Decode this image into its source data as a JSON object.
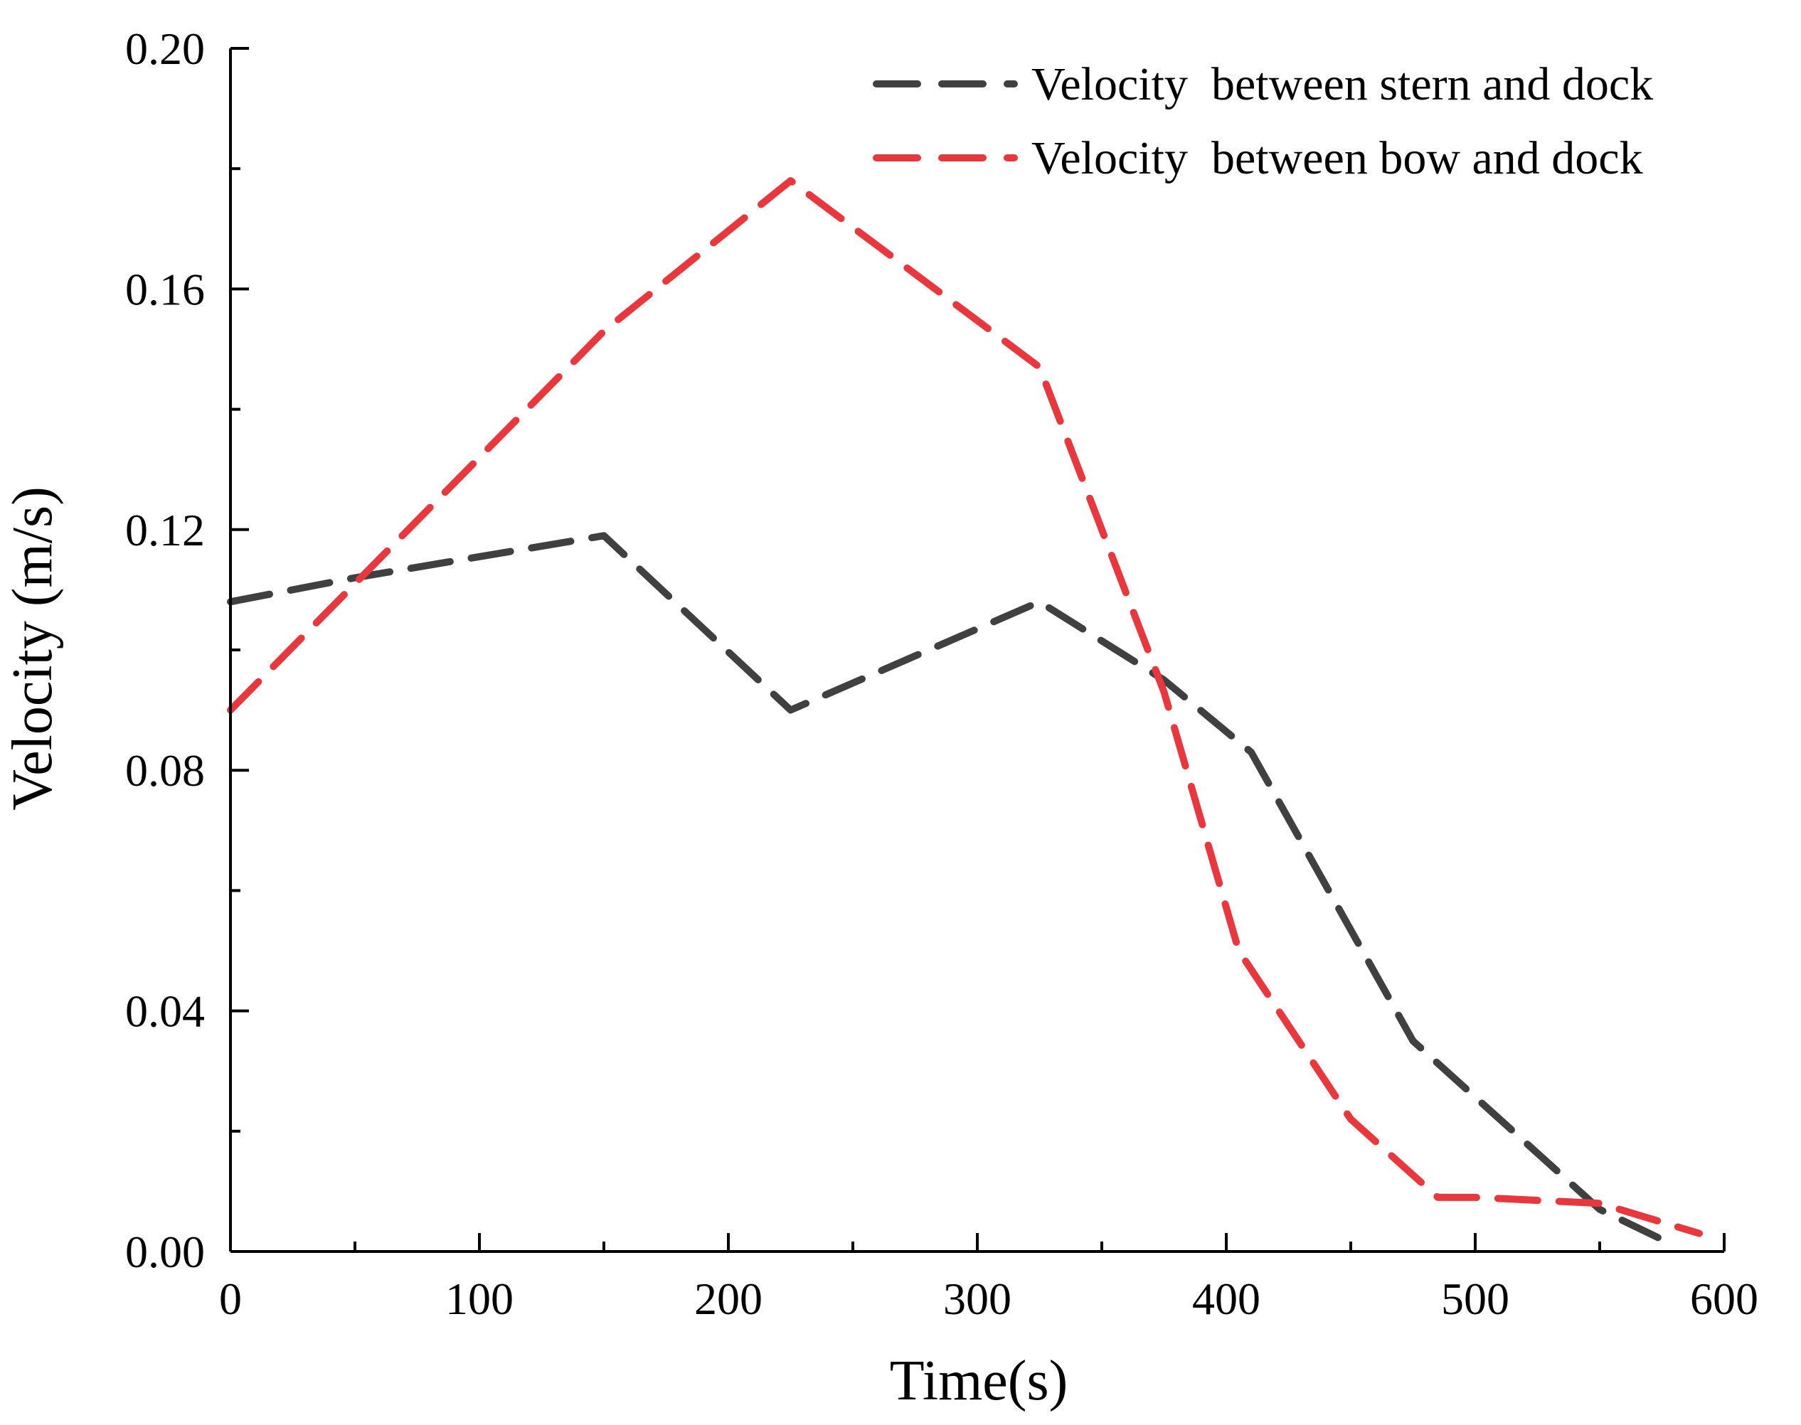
{
  "chart_data": {
    "type": "line",
    "title": "",
    "xlabel": "Time(s)",
    "ylabel": "Velocity (m/s)",
    "xlim": [
      0,
      600
    ],
    "ylim": [
      0,
      0.2
    ],
    "x_ticks": [
      0,
      100,
      200,
      300,
      400,
      500,
      600
    ],
    "x_tick_labels": [
      "0",
      "100",
      "200",
      "300",
      "400",
      "500",
      "600"
    ],
    "x_minor_ticks": [
      50,
      150,
      250,
      350,
      450,
      550
    ],
    "y_ticks": [
      0,
      0.04,
      0.08,
      0.12,
      0.16,
      0.2
    ],
    "y_tick_labels": [
      "0.00",
      "0.04",
      "0.08",
      "0.12",
      "0.16",
      "0.20"
    ],
    "y_minor_ticks": [
      0.02,
      0.06,
      0.1,
      0.14,
      0.18
    ],
    "grid": false,
    "legend_position": "top-right",
    "series": [
      {
        "name": "Velocity  between stern and dock",
        "color": "#404040",
        "line_style": "dashed",
        "x": [
          0,
          50,
          150,
          225,
          325,
          375,
          410,
          475,
          550,
          580
        ],
        "y": [
          0.108,
          0.112,
          0.119,
          0.09,
          0.108,
          0.095,
          0.083,
          0.035,
          0.007,
          0.001
        ]
      },
      {
        "name": "Velocity  between bow and dock",
        "color": "#e8383d",
        "line_style": "dashed",
        "x": [
          0,
          50,
          150,
          225,
          325,
          375,
          405,
          450,
          485,
          500,
          550,
          590
        ],
        "y": [
          0.09,
          0.111,
          0.153,
          0.178,
          0.147,
          0.093,
          0.05,
          0.022,
          0.009,
          0.009,
          0.008,
          0.003
        ]
      }
    ]
  }
}
